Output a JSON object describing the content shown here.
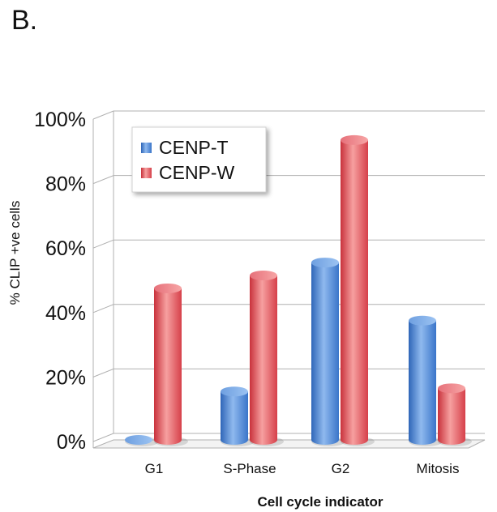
{
  "panel_label": "B.",
  "colors": {
    "series1_light": "#9cc3f2",
    "series1_dark": "#3a75c9",
    "series2_light": "#f7a6a6",
    "series2_dark": "#d6404a",
    "grid": "#b0b0b0"
  },
  "chart_data": {
    "type": "bar",
    "title": "",
    "xlabel": "Cell cycle indicator",
    "ylabel": "% CLIP +ve cells",
    "categories": [
      "G1",
      "S-Phase",
      "G2",
      "Mitosis"
    ],
    "series": [
      {
        "name": "CENP-T",
        "values": [
          0,
          15,
          55,
          37
        ]
      },
      {
        "name": "CENP-W",
        "values": [
          47,
          51,
          93,
          16
        ]
      }
    ],
    "ylim": [
      0,
      100
    ],
    "yticks": [
      "0%",
      "20%",
      "40%",
      "60%",
      "80%",
      "100%"
    ],
    "grid": true,
    "legend": "top-left"
  }
}
